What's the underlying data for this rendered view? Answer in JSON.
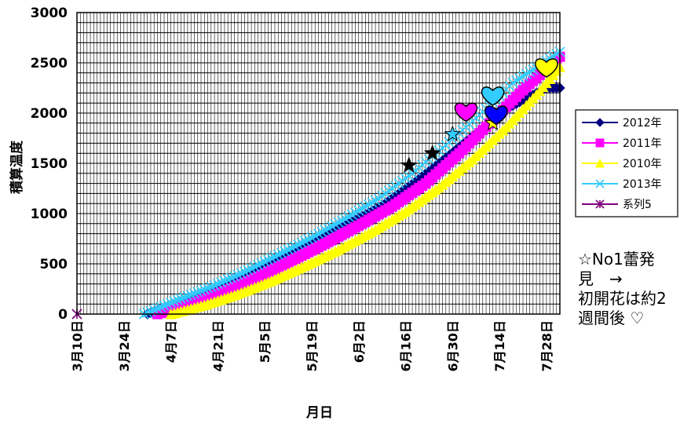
{
  "chart_data": {
    "type": "scatter",
    "ylabel": "積算温度",
    "xlabel": "月日",
    "ylim": [
      0,
      3000
    ],
    "yticks": [
      0,
      500,
      1000,
      1500,
      2000,
      2500,
      3000
    ],
    "xlim": [
      "03-10",
      "08-01"
    ],
    "xticks": [
      "3月10日",
      "3月24日",
      "4月7日",
      "4月21日",
      "5月5日",
      "5月19日",
      "6月2日",
      "6月16日",
      "6月30日",
      "7月14日",
      "7月28日"
    ],
    "grid": true,
    "legend_position": "right",
    "series": [
      {
        "name": "2012年",
        "color": "#000080",
        "marker": "diamond",
        "x": [
          "03-31",
          "04-10",
          "04-20",
          "04-30",
          "05-10",
          "05-20",
          "05-30",
          "06-09",
          "06-19",
          "06-29",
          "07-09",
          "07-14",
          "07-16",
          "07-28",
          "08-01"
        ],
        "y": [
          0,
          120,
          240,
          390,
          560,
          730,
          900,
          1080,
          1320,
          1580,
          1850,
          1980,
          2040,
          2250,
          2250
        ]
      },
      {
        "name": "2011年",
        "color": "#ff00ff",
        "marker": "square",
        "x": [
          "04-03",
          "04-13",
          "04-23",
          "05-03",
          "05-13",
          "05-23",
          "06-02",
          "06-12",
          "06-22",
          "07-02",
          "07-12",
          "07-22",
          "08-01"
        ],
        "y": [
          0,
          100,
          230,
          370,
          530,
          700,
          880,
          1070,
          1300,
          1600,
          1930,
          2260,
          2560
        ]
      },
      {
        "name": "2010年",
        "color": "#ffff00",
        "marker": "triangle",
        "x": [
          "04-07",
          "04-17",
          "04-27",
          "05-07",
          "05-17",
          "05-27",
          "06-06",
          "06-16",
          "06-26",
          "07-06",
          "07-16",
          "07-26",
          "08-01"
        ],
        "y": [
          0,
          90,
          200,
          330,
          480,
          640,
          820,
          1020,
          1260,
          1540,
          1860,
          2220,
          2460
        ]
      },
      {
        "name": "2013年",
        "color": "#33ccff",
        "marker": "x",
        "x": [
          "03-30",
          "04-09",
          "04-19",
          "04-29",
          "05-09",
          "05-19",
          "05-29",
          "06-08",
          "06-18",
          "06-28",
          "07-08",
          "07-18",
          "07-28",
          "08-01"
        ],
        "y": [
          0,
          140,
          270,
          420,
          590,
          760,
          950,
          1150,
          1400,
          1680,
          1980,
          2300,
          2520,
          2610
        ]
      },
      {
        "name": "系列5",
        "color": "#800080",
        "marker": "asterisk",
        "x": [
          "03-10"
        ],
        "y": [
          0
        ]
      }
    ],
    "annotations": [
      {
        "marker": "star",
        "color": "#000000",
        "x": "06-17",
        "y": 1480
      },
      {
        "marker": "star",
        "color": "#000000",
        "x": "06-24",
        "y": 1600
      },
      {
        "marker": "star",
        "color": "#33ccff",
        "x": "06-30",
        "y": 1790
      },
      {
        "marker": "star",
        "color": "#ffff00",
        "x": "07-12",
        "y": 1900
      },
      {
        "marker": "heart",
        "color": "#ff00ff",
        "x": "07-04",
        "y": 2020
      },
      {
        "marker": "heart",
        "color": "#33ccff",
        "x": "07-12",
        "y": 2180
      },
      {
        "marker": "heart",
        "color": "#0000ff",
        "x": "07-13",
        "y": 1990
      },
      {
        "marker": "heart",
        "color": "#ffff00",
        "x": "07-28",
        "y": 2460
      }
    ]
  },
  "note": "☆No1蕾発\n見　→\n初開花は約2\n週間後 ♡"
}
